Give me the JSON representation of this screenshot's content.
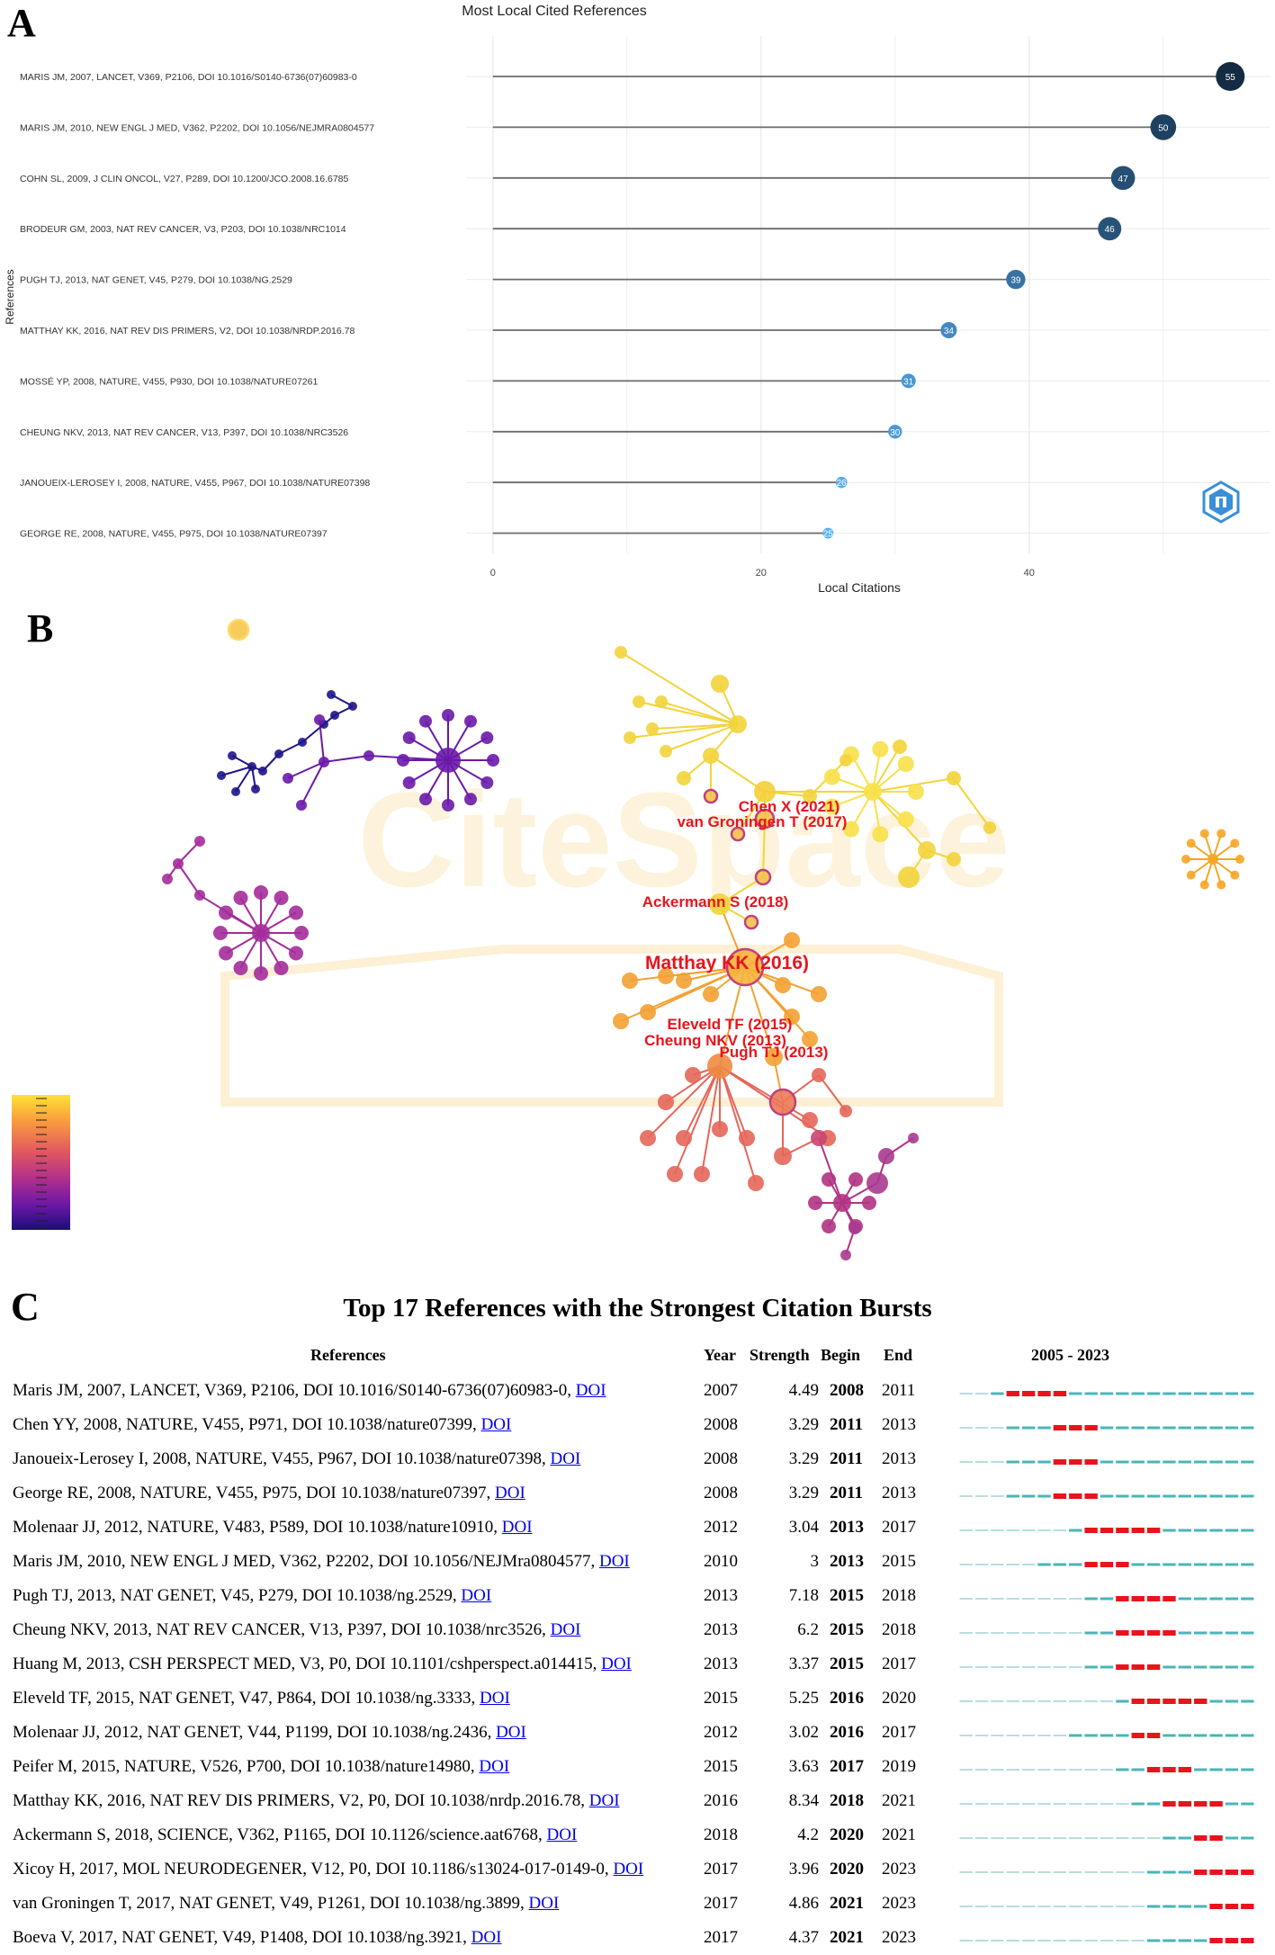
{
  "panelA": {
    "letter": "A",
    "chart_data": {
      "type": "lollipop",
      "title": "Most Local Cited References",
      "xlabel": "Local Citations",
      "ylabel": "References",
      "xlim": [
        -2,
        58
      ],
      "xticks": [
        0,
        20,
        40
      ],
      "categories": [
        "MARIS JM, 2007, LANCET, V369, P2106, DOI 10.1016/S0140-6736(07)60983-0",
        "MARIS JM, 2010, NEW ENGL J MED, V362, P2202, DOI 10.1056/NEJMRA0804577",
        "COHN SL, 2009, J CLIN ONCOL, V27, P289, DOI 10.1200/JCO.2008.16.6785",
        "BRODEUR GM, 2003, NAT REV CANCER, V3, P203, DOI 10.1038/NRC1014",
        "PUGH TJ, 2013, NAT GENET, V45, P279, DOI 10.1038/NG.2529",
        "MATTHAY KK, 2016, NAT REV DIS PRIMERS, V2, DOI 10.1038/NRDP.2016.78",
        "MOSSÉ YP, 2008, NATURE, V455, P930, DOI 10.1038/NATURE07261",
        "CHEUNG NKV, 2013, NAT REV CANCER, V13, P397, DOI 10.1038/NRC3526",
        "JANOUEIX-LEROSEY I, 2008, NATURE, V455, P967, DOI 10.1038/NATURE07398",
        "GEORGE RE, 2008, NATURE, V455, P975, DOI 10.1038/NATURE07397"
      ],
      "values": [
        55,
        50,
        47,
        46,
        39,
        34,
        31,
        30,
        26,
        25
      ],
      "colors": {
        "high": "#132b43",
        "low": "#56b1f7",
        "line": "#6b6b6b",
        "grid": "#ebebeb"
      }
    }
  },
  "panelB": {
    "letter": "B",
    "chart_data": {
      "type": "network",
      "watermark": "CiteSpace",
      "labels": [
        "Chen X (2021)",
        "van Groningen T (2017)",
        "Ackermann S (2018)",
        "Matthay KK (2016)",
        "Eleveld TF (2015)",
        "Cheung NKV (2013)",
        "Pugh TJ (2013)"
      ],
      "label_color": "#e8141c",
      "colorbar": [
        "#ffe135",
        "#f99a3e",
        "#e2585f",
        "#b22f8d",
        "#6a17a5",
        "#1a0f7a"
      ]
    }
  },
  "panelC": {
    "letter": "C",
    "title": "Top 17 References with the Strongest Citation Bursts",
    "headers": {
      "references": "References",
      "year": "Year",
      "strength": "Strength",
      "begin": "Begin",
      "end": "End",
      "range": "2005 - 2023"
    },
    "timeline": {
      "start": 2005,
      "end": 2023,
      "base_color": "#48b6b8",
      "burst_color": "#e8141c",
      "pre_color": "#b8dde0"
    },
    "chart_data": {
      "type": "table",
      "rows": [
        {
          "ref": "Maris JM, 2007, LANCET, V369, P2106, DOI 10.1016/S0140-6736(07)60983-0,",
          "link": "DOI",
          "year": 2007,
          "strength": "4.49",
          "begin": 2008,
          "end": 2011
        },
        {
          "ref": "Chen YY, 2008, NATURE, V455, P971, DOI 10.1038/nature07399,",
          "link": "DOI",
          "year": 2008,
          "strength": "3.29",
          "begin": 2011,
          "end": 2013
        },
        {
          "ref": "Janoueix-Lerosey I, 2008, NATURE, V455, P967, DOI 10.1038/nature07398,",
          "link": "DOI",
          "year": 2008,
          "strength": "3.29",
          "begin": 2011,
          "end": 2013
        },
        {
          "ref": "George RE, 2008, NATURE, V455, P975, DOI 10.1038/nature07397,",
          "link": "DOI",
          "year": 2008,
          "strength": "3.29",
          "begin": 2011,
          "end": 2013
        },
        {
          "ref": "Molenaar JJ, 2012, NATURE, V483, P589, DOI 10.1038/nature10910,",
          "link": "DOI",
          "year": 2012,
          "strength": "3.04",
          "begin": 2013,
          "end": 2017
        },
        {
          "ref": "Maris JM, 2010, NEW ENGL J MED, V362, P2202, DOI 10.1056/NEJMra0804577,",
          "link": "DOI",
          "year": 2010,
          "strength": "3",
          "begin": 2013,
          "end": 2015
        },
        {
          "ref": "Pugh TJ, 2013, NAT GENET, V45, P279, DOI 10.1038/ng.2529,",
          "link": "DOI",
          "year": 2013,
          "strength": "7.18",
          "begin": 2015,
          "end": 2018
        },
        {
          "ref": "Cheung NKV, 2013, NAT REV CANCER, V13, P397, DOI 10.1038/nrc3526,",
          "link": "DOI",
          "year": 2013,
          "strength": "6.2",
          "begin": 2015,
          "end": 2018
        },
        {
          "ref": "Huang M, 2013, CSH PERSPECT MED, V3, P0, DOI 10.1101/cshperspect.a014415,",
          "link": "DOI",
          "year": 2013,
          "strength": "3.37",
          "begin": 2015,
          "end": 2017
        },
        {
          "ref": "Eleveld TF, 2015, NAT GENET, V47, P864, DOI 10.1038/ng.3333,",
          "link": "DOI",
          "year": 2015,
          "strength": "5.25",
          "begin": 2016,
          "end": 2020
        },
        {
          "ref": "Molenaar JJ, 2012, NAT GENET, V44, P1199, DOI 10.1038/ng.2436,",
          "link": "DOI",
          "year": 2012,
          "strength": "3.02",
          "begin": 2016,
          "end": 2017
        },
        {
          "ref": "Peifer M, 2015, NATURE, V526, P700, DOI 10.1038/nature14980,",
          "link": "DOI",
          "year": 2015,
          "strength": "3.63",
          "begin": 2017,
          "end": 2019
        },
        {
          "ref": "Matthay KK, 2016, NAT REV DIS PRIMERS, V2, P0, DOI 10.1038/nrdp.2016.78,",
          "link": "DOI",
          "year": 2016,
          "strength": "8.34",
          "begin": 2018,
          "end": 2021
        },
        {
          "ref": "Ackermann S, 2018, SCIENCE, V362, P1165, DOI 10.1126/science.aat6768,",
          "link": "DOI",
          "year": 2018,
          "strength": "4.2",
          "begin": 2020,
          "end": 2021
        },
        {
          "ref": "Xicoy H, 2017, MOL NEURODEGENER, V12, P0, DOI 10.1186/s13024-017-0149-0,",
          "link": "DOI",
          "year": 2017,
          "strength": "3.96",
          "begin": 2020,
          "end": 2023
        },
        {
          "ref": "van Groningen T, 2017, NAT GENET, V49, P1261, DOI 10.1038/ng.3899,",
          "link": "DOI",
          "year": 2017,
          "strength": "4.86",
          "begin": 2021,
          "end": 2023
        },
        {
          "ref": "Boeva V, 2017, NAT GENET, V49, P1408, DOI 10.1038/ng.3921,",
          "link": "DOI",
          "year": 2017,
          "strength": "4.37",
          "begin": 2021,
          "end": 2023
        }
      ]
    }
  }
}
